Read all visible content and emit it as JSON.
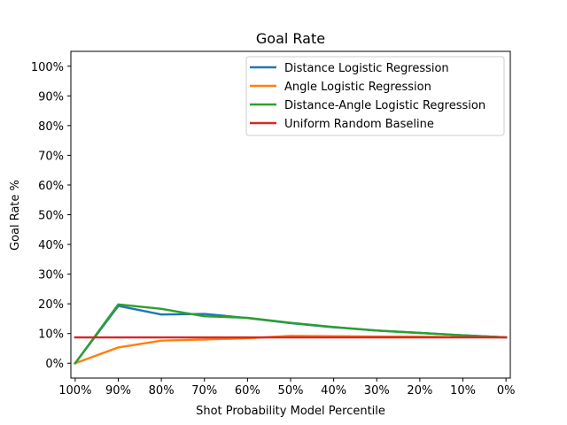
{
  "chart_data": {
    "type": "line",
    "title": "Goal Rate",
    "xlabel": "Shot Probability Model Percentile",
    "ylabel": "Goal Rate %",
    "x": [
      100,
      90,
      80,
      70,
      60,
      50,
      40,
      30,
      20,
      10,
      0
    ],
    "x_inverted": true,
    "xlim": [
      101,
      -1
    ],
    "ylim": [
      -5,
      105
    ],
    "xticks": [
      100,
      90,
      80,
      70,
      60,
      50,
      40,
      30,
      20,
      10,
      0
    ],
    "xtick_labels": [
      "100%",
      "90%",
      "80%",
      "70%",
      "60%",
      "50%",
      "40%",
      "30%",
      "20%",
      "10%",
      "0%"
    ],
    "yticks": [
      0,
      10,
      20,
      30,
      40,
      50,
      60,
      70,
      80,
      90,
      100
    ],
    "ytick_labels": [
      "0%",
      "10%",
      "20%",
      "30%",
      "40%",
      "50%",
      "60%",
      "70%",
      "80%",
      "90%",
      "100%"
    ],
    "grid": false,
    "legend_position": "top-right",
    "series": [
      {
        "name": "Distance Logistic Regression",
        "color": "#1f77b4",
        "values": [
          0,
          19.3,
          16.4,
          16.6,
          15.2,
          13.5,
          12.1,
          11.0,
          10.2,
          9.4,
          8.7
        ]
      },
      {
        "name": "Angle Logistic Regression",
        "color": "#ff7f0e",
        "values": [
          0,
          5.3,
          7.6,
          8.0,
          8.4,
          9.2,
          9.1,
          9.0,
          8.9,
          8.8,
          8.7
        ]
      },
      {
        "name": "Distance-Angle Logistic Regression",
        "color": "#2ca02c",
        "values": [
          0,
          19.8,
          18.3,
          15.8,
          15.3,
          13.6,
          12.2,
          11.0,
          10.2,
          9.4,
          8.7
        ]
      },
      {
        "name": "Uniform Random Baseline",
        "color": "#d62728",
        "values": [
          8.7,
          8.7,
          8.7,
          8.7,
          8.7,
          8.7,
          8.7,
          8.7,
          8.7,
          8.7,
          8.7
        ]
      }
    ]
  }
}
